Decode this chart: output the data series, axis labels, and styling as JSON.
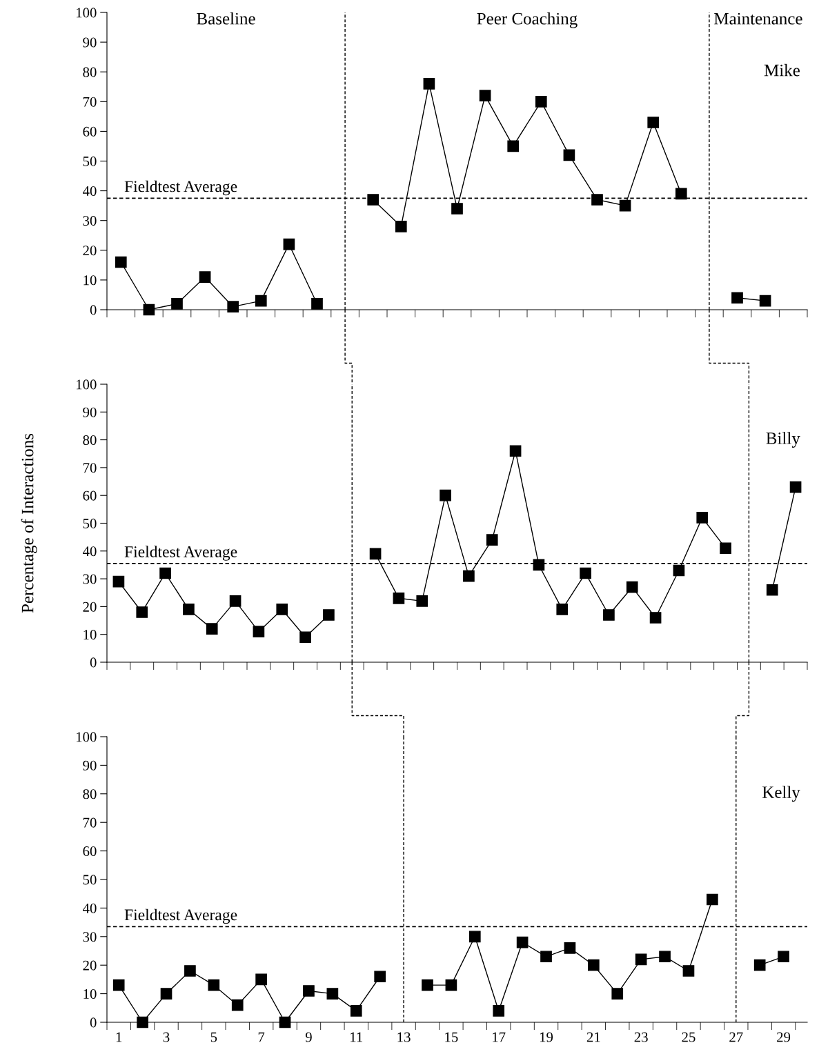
{
  "chart_data": [
    {
      "type": "line",
      "annotations": [
        "Baseline",
        "Peer Coaching",
        "Maintenance",
        "Mike"
      ],
      "marker": "square",
      "line_style": "solid",
      "grid": false,
      "legend": false,
      "tick_labels": "y",
      "categories": [
        null,
        null,
        null,
        null,
        null,
        null,
        null,
        null,
        null,
        null,
        null,
        null,
        null,
        null,
        null,
        null,
        null,
        null,
        null,
        null,
        null,
        null,
        null,
        null,
        null
      ],
      "series": [
        {
          "color": "#000000",
          "values": [
            16,
            0,
            2,
            11,
            1,
            3,
            22,
            2,
            null,
            null,
            null,
            null,
            null,
            null,
            null,
            null,
            null,
            null,
            null,
            null,
            null,
            null,
            null,
            null,
            null
          ]
        },
        {
          "color": "#000000",
          "values": [
            null,
            null,
            null,
            null,
            null,
            null,
            null,
            null,
            null,
            37,
            28,
            76,
            34,
            72,
            55,
            70,
            52,
            37,
            35,
            63,
            39,
            null,
            null,
            null,
            null
          ]
        },
        {
          "color": "#000000",
          "values": [
            null,
            null,
            null,
            null,
            null,
            null,
            null,
            null,
            null,
            null,
            null,
            null,
            null,
            null,
            null,
            null,
            null,
            null,
            null,
            null,
            null,
            null,
            4,
            3,
            null
          ]
        }
      ],
      "ylim": [
        0,
        100
      ],
      "yticks": [
        0,
        10,
        20,
        30,
        40,
        50,
        60,
        70,
        80,
        90,
        100
      ],
      "ref_lines": [
        {
          "axis": "y",
          "value": 37.5,
          "label": "Fieldtest Average",
          "color": "#000000",
          "line_style": "dashed"
        }
      ]
    },
    {
      "type": "line",
      "ylabel": "Percentage of Interactions",
      "annotations": [
        "Billy"
      ],
      "marker": "square",
      "line_style": "solid",
      "grid": false,
      "legend": false,
      "tick_labels": "y",
      "categories": [
        null,
        null,
        null,
        null,
        null,
        null,
        null,
        null,
        null,
        null,
        null,
        null,
        null,
        null,
        null,
        null,
        null,
        null,
        null,
        null,
        null,
        null,
        null,
        null,
        null,
        null,
        null,
        null,
        null,
        null
      ],
      "series": [
        {
          "color": "#000000",
          "values": [
            29,
            18,
            32,
            19,
            12,
            22,
            11,
            19,
            9,
            17,
            null,
            null,
            null,
            null,
            null,
            null,
            null,
            null,
            null,
            null,
            null,
            null,
            null,
            null,
            null,
            null,
            null,
            null,
            null,
            null
          ]
        },
        {
          "color": "#000000",
          "values": [
            null,
            null,
            null,
            null,
            null,
            null,
            null,
            null,
            null,
            null,
            null,
            39,
            23,
            22,
            60,
            31,
            44,
            76,
            35,
            19,
            32,
            17,
            27,
            16,
            33,
            52,
            41,
            null,
            null,
            null
          ]
        },
        {
          "color": "#000000",
          "values": [
            null,
            null,
            null,
            null,
            null,
            null,
            null,
            null,
            null,
            null,
            null,
            null,
            null,
            null,
            null,
            null,
            null,
            null,
            null,
            null,
            null,
            null,
            null,
            null,
            null,
            null,
            null,
            null,
            26,
            63
          ]
        }
      ],
      "ylim": [
        0,
        100
      ],
      "yticks": [
        0,
        10,
        20,
        30,
        40,
        50,
        60,
        70,
        80,
        90,
        100
      ],
      "ref_lines": [
        {
          "axis": "y",
          "value": 35.5,
          "label": "Fieldtest Average",
          "color": "#000000",
          "line_style": "dashed"
        }
      ]
    },
    {
      "type": "line",
      "annotations": [
        "Kelly"
      ],
      "marker": "square",
      "line_style": "solid",
      "grid": false,
      "legend": false,
      "x": [
        1,
        2,
        3,
        4,
        5,
        6,
        7,
        8,
        9,
        10,
        11,
        12,
        13,
        14,
        15,
        16,
        17,
        18,
        19,
        20,
        21,
        22,
        23,
        24,
        25,
        26,
        27,
        28,
        29
      ],
      "series": [
        {
          "color": "#000000",
          "values": [
            13,
            0,
            10,
            18,
            13,
            6,
            15,
            0,
            11,
            10,
            4,
            16,
            null,
            13,
            13,
            30,
            4,
            28,
            23,
            26,
            20,
            10,
            22,
            23,
            18,
            43,
            null,
            20,
            23
          ]
        }
      ],
      "xlim": [
        0.5,
        30
      ],
      "xticks": [
        1,
        3,
        5,
        7,
        9,
        11,
        13,
        15,
        17,
        19,
        21,
        23,
        25,
        27,
        29,
        {
          "value": 0.5,
          "label": null
        },
        {
          "value": 1.5,
          "label": null
        },
        {
          "value": 2.5,
          "label": null
        },
        {
          "value": 3.5,
          "label": null
        },
        {
          "value": 4.5,
          "label": null
        },
        {
          "value": 5.5,
          "label": null
        },
        {
          "value": 6.5,
          "label": null
        },
        {
          "value": 7.5,
          "label": null
        },
        {
          "value": 8.5,
          "label": null
        },
        {
          "value": 9.5,
          "label": null
        },
        {
          "value": 10.5,
          "label": null
        },
        {
          "value": 11.5,
          "label": null
        },
        {
          "value": 12.5,
          "label": null
        },
        {
          "value": 13.5,
          "label": null
        },
        {
          "value": 14.5,
          "label": null
        },
        {
          "value": 15.5,
          "label": null
        },
        {
          "value": 16.5,
          "label": null
        },
        {
          "value": 17.5,
          "label": null
        },
        {
          "value": 18.5,
          "label": null
        },
        {
          "value": 19.5,
          "label": null
        },
        {
          "value": 20.5,
          "label": null
        },
        {
          "value": 21.5,
          "label": null
        },
        {
          "value": 22.5,
          "label": null
        },
        {
          "value": 23.5,
          "label": null
        },
        {
          "value": 24.5,
          "label": null
        },
        {
          "value": 25.5,
          "label": null
        },
        {
          "value": 26.5,
          "label": null
        },
        {
          "value": 27.5,
          "label": null
        },
        {
          "value": 28.5,
          "label": null
        },
        {
          "value": 29.5,
          "label": null
        }
      ],
      "ylim": [
        0,
        100
      ],
      "yticks": [
        0,
        10,
        20,
        30,
        40,
        50,
        60,
        70,
        80,
        90,
        100
      ],
      "ref_lines": [
        {
          "axis": "y",
          "value": 33.5,
          "label": "Fieldtest Average",
          "color": "#000000",
          "line_style": "dashed"
        },
        {
          "axis": "x",
          "value": 13,
          "label": null,
          "color": "#000000",
          "line_style": "dashed"
        },
        {
          "axis": "x",
          "value": 27,
          "label": null,
          "color": "#000000",
          "line_style": "dashed"
        }
      ]
    }
  ]
}
